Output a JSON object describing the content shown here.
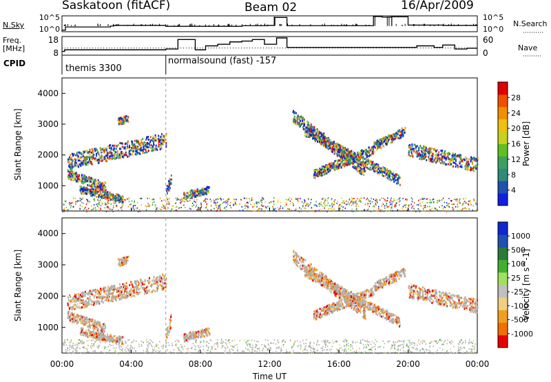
{
  "header": {
    "station": "Saskatoon (fitACF)",
    "beam": "Beam 02",
    "date": "16/Apr/2009"
  },
  "side_labels": {
    "nsky": "N.Sky",
    "nsearch": "N.Search",
    "freq_line1": "Freq.",
    "freq_line2": "[MHz]",
    "nave": "Nave",
    "cpid": "CPID"
  },
  "cpid_segments": [
    {
      "label": "themis 3300",
      "start": 0,
      "end": 6
    },
    {
      "label": "normalsound (fast) -157",
      "start": 6,
      "end": 24
    }
  ],
  "colors": {
    "power": [
      "#1020e0",
      "#2050b0",
      "#2f8a7a",
      "#3ea060",
      "#60c020",
      "#c8d020",
      "#f0c010",
      "#f09000",
      "#f05000",
      "#e00000"
    ],
    "velocity": [
      "#e80000",
      "#f07000",
      "#f0a020",
      "#f0d080",
      "#c0c0c0",
      "#a0e060",
      "#40b030",
      "#2a7a3a",
      "#2050b0",
      "#1028d0"
    ],
    "ground": "#b0b0b0"
  },
  "chart_data": [
    {
      "type": "line",
      "panel": "noise",
      "ylabel_left": "N.Sky",
      "ylabel_right": "N.Search",
      "yticks_left": [
        "10^5",
        "10^0"
      ],
      "yticks_right": [
        "10^5",
        "10^0"
      ],
      "x": [
        0,
        0.2,
        2.8,
        3.0,
        6.0,
        10.4,
        11.9,
        12.3,
        13.0,
        18.0,
        18.5,
        19.0,
        20.0,
        22.0,
        24.0
      ],
      "sky": [
        0.5,
        1.5,
        1.8,
        2.0,
        1.7,
        1.9,
        2.0,
        4.5,
        1.9,
        4.8,
        4.6,
        4.7,
        2.1,
        2.0,
        2.2
      ]
    },
    {
      "type": "line",
      "panel": "freq_nave",
      "ylabel_left": "Freq. [MHz]",
      "ylabel_right": "Nave",
      "yticks_left": [
        "18",
        "8"
      ],
      "yticks_right": [
        "60",
        "0"
      ],
      "freq_x": [
        0,
        0.15,
        6.0,
        6.7,
        7.7,
        8.3,
        9.0,
        9.7,
        10.4,
        11.0,
        11.7,
        12.4,
        13.0,
        18.0,
        20.5,
        21.5,
        22.0,
        22.7,
        23.4,
        24.0
      ],
      "freq_y": [
        9.5,
        10.5,
        11.0,
        17.0,
        10.5,
        13.0,
        14.0,
        15.5,
        16.0,
        17.0,
        14.0,
        18.0,
        12.0,
        12.0,
        13.0,
        12.0,
        13.5,
        11.0,
        11.5,
        11.5
      ],
      "nave_level": 23
    },
    {
      "type": "heatmap",
      "panel": "power",
      "ylabel": "Slant Range [km]",
      "ylim": [
        180,
        4500
      ],
      "yticks": [
        1000,
        2000,
        3000,
        4000
      ],
      "cbar_label": "Power [dB]",
      "cbar_ticks": [
        "4",
        "8",
        "12",
        "16",
        "20",
        "24",
        "28"
      ],
      "xlim": [
        0,
        24
      ],
      "echo_bands": [
        {
          "t0": 0.3,
          "t1": 6.0,
          "r0": 1800,
          "r1": 2500,
          "w": 250
        },
        {
          "t0": 0.3,
          "t1": 2.5,
          "r0": 1400,
          "r1": 1000,
          "w": 150
        },
        {
          "t0": 1.0,
          "t1": 3.5,
          "r0": 900,
          "r1": 600,
          "w": 120
        },
        {
          "t0": 3.2,
          "t1": 3.8,
          "r0": 3100,
          "r1": 3200,
          "w": 120
        },
        {
          "t0": 13.3,
          "t1": 17.5,
          "r0": 3300,
          "r1": 1500,
          "w": 200
        },
        {
          "t0": 14.0,
          "t1": 19.5,
          "r0": 2800,
          "r1": 1200,
          "w": 150
        },
        {
          "t0": 14.5,
          "t1": 18.0,
          "r0": 1400,
          "r1": 2200,
          "w": 150
        },
        {
          "t0": 18.0,
          "t1": 19.8,
          "r0": 2300,
          "r1": 2800,
          "w": 150
        },
        {
          "t0": 20.0,
          "t1": 24.0,
          "r0": 2200,
          "r1": 1700,
          "w": 220
        },
        {
          "t0": 6.0,
          "t1": 6.3,
          "r0": 800,
          "r1": 1300,
          "w": 200
        },
        {
          "t0": 7.0,
          "t1": 8.5,
          "r0": 700,
          "r1": 900,
          "w": 120
        }
      ]
    },
    {
      "type": "heatmap",
      "panel": "velocity",
      "ylabel": "Slant Range [km]",
      "ylim": [
        180,
        4500
      ],
      "yticks": [
        1000,
        2000,
        3000,
        4000
      ],
      "cbar_label": "Velocity [m s^-1]",
      "cbar_ticks": [
        "-1000",
        "-500",
        "-100",
        "-25",
        "25",
        "100",
        "500",
        "1000"
      ],
      "xlim": [
        0,
        24
      ],
      "xticks": [
        "00:00",
        "04:00",
        "08:00",
        "12:00",
        "16:00",
        "20:00",
        "00:00"
      ],
      "xlabel": "Time UT"
    }
  ]
}
